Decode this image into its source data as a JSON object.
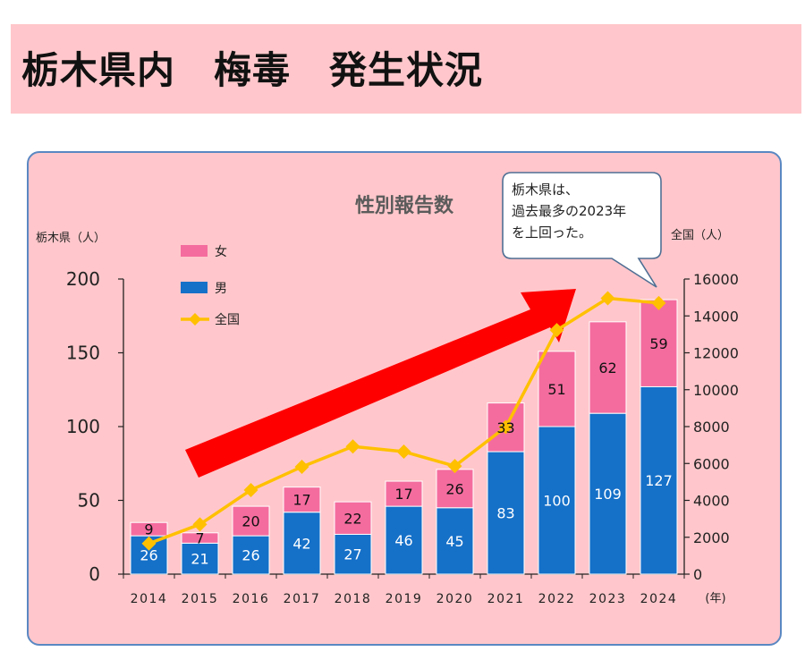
{
  "header": {
    "title": "栃木県内　梅毒　発生状況"
  },
  "chart_data": {
    "type": "bar",
    "title": "性別報告数",
    "categories": [
      "2014",
      "2015",
      "2016",
      "2017",
      "2018",
      "2019",
      "2020",
      "2021",
      "2022",
      "2023",
      "2024"
    ],
    "series": [
      {
        "name": "男",
        "values": [
          26,
          21,
          26,
          42,
          27,
          46,
          45,
          83,
          100,
          109,
          127
        ],
        "color": "#1570c8"
      },
      {
        "name": "女",
        "values": [
          9,
          7,
          20,
          17,
          22,
          17,
          26,
          33,
          51,
          62,
          59
        ],
        "color": "#f46c9e"
      }
    ],
    "line_series": {
      "name": "全国",
      "values": [
        1660,
        2700,
        4560,
        5820,
        6920,
        6640,
        5860,
        7980,
        13230,
        14960,
        14700
      ],
      "color": "#ffc000"
    },
    "ylabel_left": "栃木県（人）",
    "ylabel_right": "全国（人）",
    "xlabel": "(年)",
    "ylim_left": [
      0,
      200
    ],
    "ylim_right": [
      0,
      16000
    ],
    "yticks_left": [
      "0",
      "50",
      "100",
      "150",
      "200"
    ],
    "yticks_right": [
      "0",
      "2000",
      "4000",
      "6000",
      "8000",
      "10000",
      "12000",
      "14000",
      "16000"
    ],
    "legend": {
      "position": "top-left",
      "entries": [
        "女",
        "男",
        "全国"
      ]
    },
    "callout": [
      "栃木県は、",
      "過去最多の2023年",
      "を上回った。"
    ],
    "trend_arrow": "increasing"
  }
}
